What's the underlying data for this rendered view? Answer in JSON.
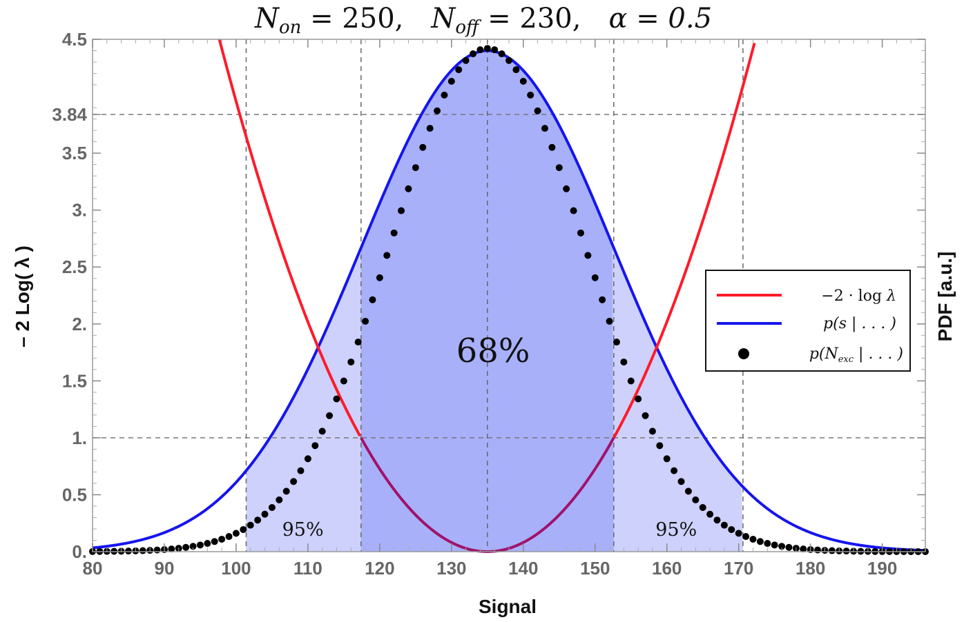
{
  "chart_data": {
    "type": "line",
    "title": "N_on = 250,   N_off = 230,   α = 0.5",
    "title_parts": {
      "non_label": "N",
      "non_sub": "on",
      "non_value": " = 250,",
      "noff_label": "N",
      "noff_sub": "off",
      "noff_value": " = 230,",
      "alpha": "α = 0.5"
    },
    "xlabel": "Signal",
    "ylabel_left": "– 2 Log( λ )",
    "ylabel_right": "PDF [a.u.]",
    "xlim": [
      80,
      196
    ],
    "ylim": [
      0,
      4.5
    ],
    "x_ticks": [
      {
        "value": 80,
        "label": "80"
      },
      {
        "value": 90,
        "label": "90"
      },
      {
        "value": 100,
        "label": "100"
      },
      {
        "value": 110,
        "label": "110"
      },
      {
        "value": 120,
        "label": "120"
      },
      {
        "value": 130,
        "label": "130"
      },
      {
        "value": 140,
        "label": "140"
      },
      {
        "value": 150,
        "label": "150"
      },
      {
        "value": 160,
        "label": "160"
      },
      {
        "value": 170,
        "label": "170"
      },
      {
        "value": 180,
        "label": "180"
      },
      {
        "value": 190,
        "label": "190"
      }
    ],
    "y_ticks": [
      {
        "value": 0,
        "label": "0."
      },
      {
        "value": 0.5,
        "label": "0.5"
      },
      {
        "value": 1.0,
        "label": "1."
      },
      {
        "value": 1.5,
        "label": "1.5"
      },
      {
        "value": 2.0,
        "label": "2."
      },
      {
        "value": 2.5,
        "label": "2.5"
      },
      {
        "value": 3.0,
        "label": "3."
      },
      {
        "value": 3.5,
        "label": "3.5"
      },
      {
        "value": 3.84,
        "label": "3.84"
      },
      {
        "value": 4.5,
        "label": "4.5"
      }
    ],
    "reference_lines": {
      "horizontal": [
        1.0,
        3.84
      ],
      "vertical": [
        101.4,
        117.4,
        135.0,
        152.6,
        170.6
      ]
    },
    "intervals": {
      "inner_68": [
        117.4,
        152.6
      ],
      "outer_95": [
        101.4,
        170.6
      ]
    },
    "labels": {
      "center": "68%",
      "left_tail": "95%",
      "right_tail": "95%"
    },
    "series": [
      {
        "name": "−2 · log λ",
        "kind": "curve",
        "color": "#ff1a2a",
        "center": 135,
        "sigma": 17.6
      },
      {
        "name": "p(s | ...)",
        "kind": "curve",
        "color": "#1515ee",
        "center": 135,
        "sigma": 17.6,
        "peak_display": 4.4
      },
      {
        "name": "p(N_exc | ...)",
        "kind": "points",
        "color": "#000000",
        "center": 135,
        "sigma": 13.6,
        "peak_display": 4.42,
        "step": 1,
        "from": 80,
        "to": 196
      }
    ],
    "legend": {
      "position": "right",
      "entries": [
        {
          "pre": "−2 · log ",
          "post": "λ",
          "sub": ""
        },
        {
          "pre": "p(s | . . . )",
          "post": "",
          "sub": ""
        },
        {
          "pre": "p(N",
          "sub": "exc",
          "post": " | . . . )"
        }
      ]
    },
    "colors": {
      "red": "#ff1a2a",
      "blue": "#1515ee",
      "fill_outer": "#cdd1fb",
      "fill_inner": "#a8b0fa",
      "purple": "#a0126a"
    }
  }
}
